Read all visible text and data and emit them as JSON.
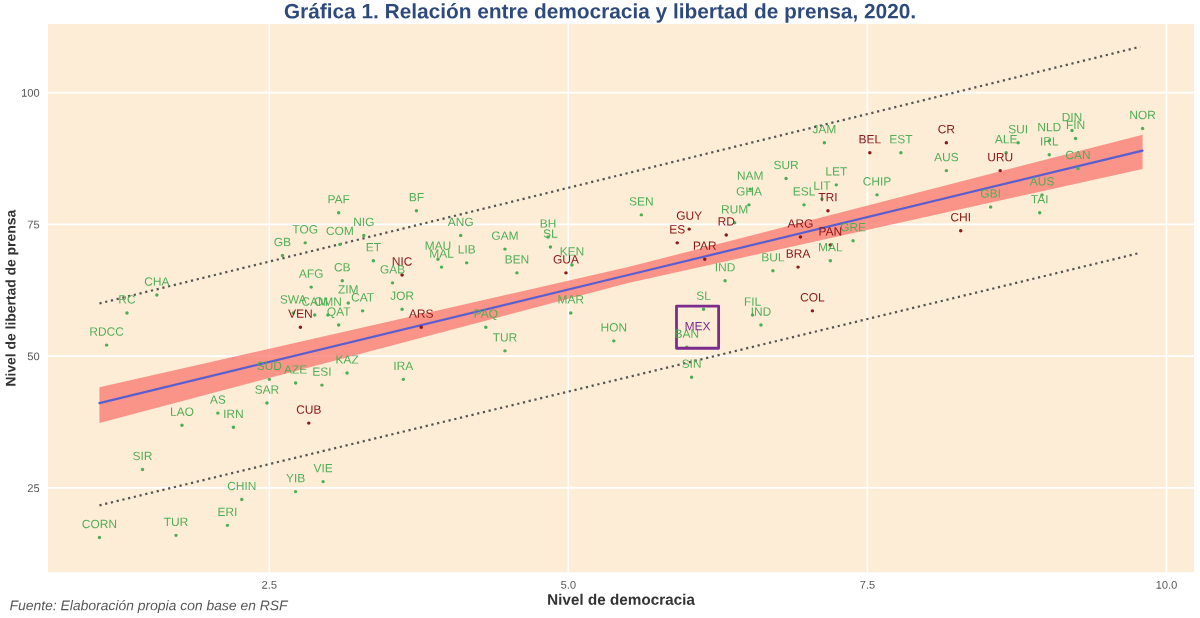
{
  "chart_data": {
    "type": "scatter",
    "title": "Gráfica 1. Relación entre democracia y libertad de prensa, 2020.",
    "xlabel": "Nivel de democracia",
    "ylabel": "Nivel de libertad de prensa",
    "annotations": [
      "Fuente: Elaboración propia con base en RSF"
    ],
    "xlim": [
      0.65,
      10.23
    ],
    "ylim": [
      9,
      113
    ],
    "xticks": [
      2.5,
      {
        "value": 5,
        "label": "5.0"
      },
      7.5,
      {
        "value": 10,
        "label": "10.0"
      }
    ],
    "yticks": [
      25,
      50,
      75,
      100
    ],
    "grid": true,
    "series": [
      {
        "color": "#4fae55",
        "marker": "circle",
        "x": [
          3.08,
          3.73,
          2.8,
          3.09,
          3.29,
          2.61,
          4.1,
          4.47,
          4.83,
          4.85,
          3.37,
          3.91,
          3.94,
          4.15,
          2.85,
          3.11,
          3.53,
          4.57,
          5.03,
          1.31,
          1.56,
          3.16,
          3.28,
          2.7,
          2.88,
          2.99,
          3.61,
          3.08,
          4.31,
          4.47,
          5.02,
          1.14,
          1.77,
          2.07,
          2.2,
          2.48,
          2.5,
          2.72,
          2.94,
          3.15,
          3.62,
          1.44,
          2.27,
          2.72,
          2.95,
          2.15,
          1.08,
          1.72,
          7.14,
          7.78,
          8.66,
          8.76,
          9.02,
          9.21,
          9.24,
          9.8,
          8.16,
          9.02,
          9.26,
          8.96,
          8.53,
          8.94,
          6.52,
          6.82,
          7.24,
          6.51,
          6.97,
          7.12,
          7.58,
          5.61,
          6.39,
          7.38,
          7.19,
          6.71,
          6.31,
          6.13,
          5.99,
          6.03,
          6.54,
          6.61,
          5.38
        ],
        "values": [
          77.2,
          77.6,
          71.5,
          71.2,
          72.9,
          69.1,
          72.9,
          70.3,
          72.6,
          70.7,
          68.1,
          68.4,
          66.9,
          67.7,
          63.1,
          64.3,
          63.9,
          65.8,
          67.3,
          58.2,
          61.6,
          60.1,
          58.6,
          58.2,
          57.8,
          57.8,
          58.9,
          55.9,
          55.5,
          51.0,
          58.2,
          52.1,
          36.9,
          39.2,
          36.5,
          41.1,
          45.6,
          44.9,
          44.5,
          46.8,
          45.6,
          28.5,
          22.8,
          24.3,
          26.2,
          17.9,
          15.6,
          16.0,
          90.5,
          88.6,
          88.6,
          90.5,
          90.9,
          92.8,
          91.3,
          93.2,
          85.2,
          88.2,
          85.6,
          80.6,
          78.3,
          77.2,
          81.7,
          83.7,
          82.5,
          78.7,
          78.7,
          79.8,
          80.6,
          76.8,
          75.3,
          71.9,
          68.1,
          66.2,
          64.3,
          58.9,
          51.7,
          46.0,
          57.8,
          55.9,
          52.9
        ],
        "value_labels": [
          "PAF",
          "BF",
          "TOG",
          "COM",
          "NIG",
          "GB",
          "ANG",
          "GAM",
          "BH",
          "SL",
          "ET",
          "MAU",
          "MAL",
          "LIB",
          "AFG",
          "CB",
          "GAB",
          "BEN",
          "KEN",
          "RC",
          "CHA",
          "ZIM",
          "CAT",
          "SWA",
          "CAM",
          "OMN",
          "JOR",
          "QAT",
          "PAQ",
          "TUR",
          "MAR",
          "RDCC",
          "LAO",
          "AS",
          "IRN",
          "SAR",
          "SUD",
          "AZE",
          "ESI",
          "KAZ",
          "IRA",
          "SIR",
          "CHIN",
          "YIB",
          "VIE",
          "ERI",
          "CORN",
          "TUR",
          "JAM",
          "EST",
          "ALE",
          "SUI",
          "NLD",
          "DIN",
          "FIN",
          "NOR",
          "AUS",
          "IRL",
          "CAN",
          "AUS",
          "GBI",
          "TAI",
          "NAM",
          "SUR",
          "LET",
          "GHA",
          "ESL",
          "LIT",
          "CHIP",
          "SEN",
          "RUM",
          "GRE",
          "MAL",
          "BUL",
          "IND",
          "SL",
          "BAN",
          "SIN",
          "FIL",
          "IND",
          "HON"
        ]
      },
      {
        "color": "#8b1a1a",
        "marker": "circle",
        "x": [
          3.61,
          4.98,
          2.76,
          3.77,
          2.83,
          7.52,
          8.16,
          8.61,
          7.17,
          6.01,
          6.32,
          5.91,
          6.14,
          6.94,
          7.19,
          6.92,
          8.28,
          7.04
        ],
        "values": [
          65.4,
          65.8,
          55.5,
          55.5,
          37.3,
          88.6,
          90.5,
          85.2,
          77.6,
          74.1,
          73.0,
          71.5,
          68.4,
          72.6,
          71.1,
          66.9,
          73.8,
          58.6
        ],
        "value_labels": [
          "NIC",
          "GUA",
          "VEN",
          "ARS",
          "CUB",
          "BEL",
          "CR",
          "URU",
          "TRI",
          "GUY",
          "RD",
          "ES",
          "PAR",
          "ARG",
          "PAN",
          "BRA",
          "CHI",
          "COL"
        ]
      },
      {
        "color": "#7b2d8e",
        "marker": "square",
        "x": [
          6.08
        ],
        "values": [
          55.5
        ],
        "value_labels": [
          "MEX"
        ]
      },
      {
        "type": "line",
        "color": "#5a5fd0",
        "line_style": "solid",
        "x": [
          1.08,
          5.5,
          9.8
        ],
        "values": [
          41.1,
          65.4,
          89.0
        ],
        "lower": [
          37.3,
          63.9,
          85.5
        ],
        "upper": [
          44.1,
          66.9,
          92.0
        ]
      },
      {
        "type": "line",
        "color": "#555555",
        "line_style": "dotted",
        "x": [
          1.08,
          9.78
        ],
        "values": [
          60.0,
          108.7
        ]
      },
      {
        "type": "line",
        "color": "#555555",
        "line_style": "dotted",
        "x": [
          1.08,
          9.78
        ],
        "values": [
          21.7,
          69.6
        ]
      }
    ]
  }
}
